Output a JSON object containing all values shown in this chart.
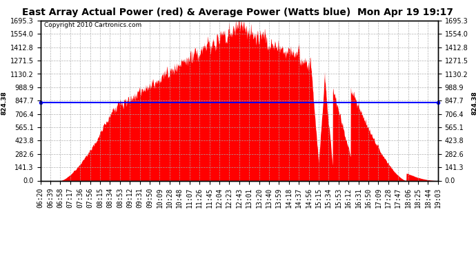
{
  "title": "East Array Actual Power (red) & Average Power (Watts blue)  Mon Apr 19 19:17",
  "copyright": "Copyright 2010 Cartronics.com",
  "average_power": 824.38,
  "y_max": 1695.3,
  "y_ticks": [
    0.0,
    141.3,
    282.6,
    423.8,
    565.1,
    706.4,
    847.7,
    988.9,
    1130.2,
    1271.5,
    1412.8,
    1554.0,
    1695.3
  ],
  "fill_color": "#ff0000",
  "line_color": "#0000ff",
  "background_color": "#ffffff",
  "grid_color": "#aaaaaa",
  "x_labels": [
    "06:20",
    "06:39",
    "06:58",
    "07:17",
    "07:36",
    "07:56",
    "08:15",
    "08:34",
    "08:53",
    "09:12",
    "09:31",
    "09:50",
    "10:09",
    "10:28",
    "10:48",
    "11:07",
    "11:26",
    "11:45",
    "12:04",
    "12:23",
    "12:43",
    "13:01",
    "13:20",
    "13:40",
    "13:59",
    "14:18",
    "14:37",
    "14:56",
    "15:15",
    "15:34",
    "15:53",
    "16:12",
    "16:31",
    "16:50",
    "17:09",
    "17:28",
    "17:47",
    "18:06",
    "18:25",
    "18:44",
    "19:03"
  ],
  "title_fontsize": 10,
  "tick_fontsize": 7,
  "copyright_fontsize": 6.5,
  "avg_label_fontsize": 7
}
